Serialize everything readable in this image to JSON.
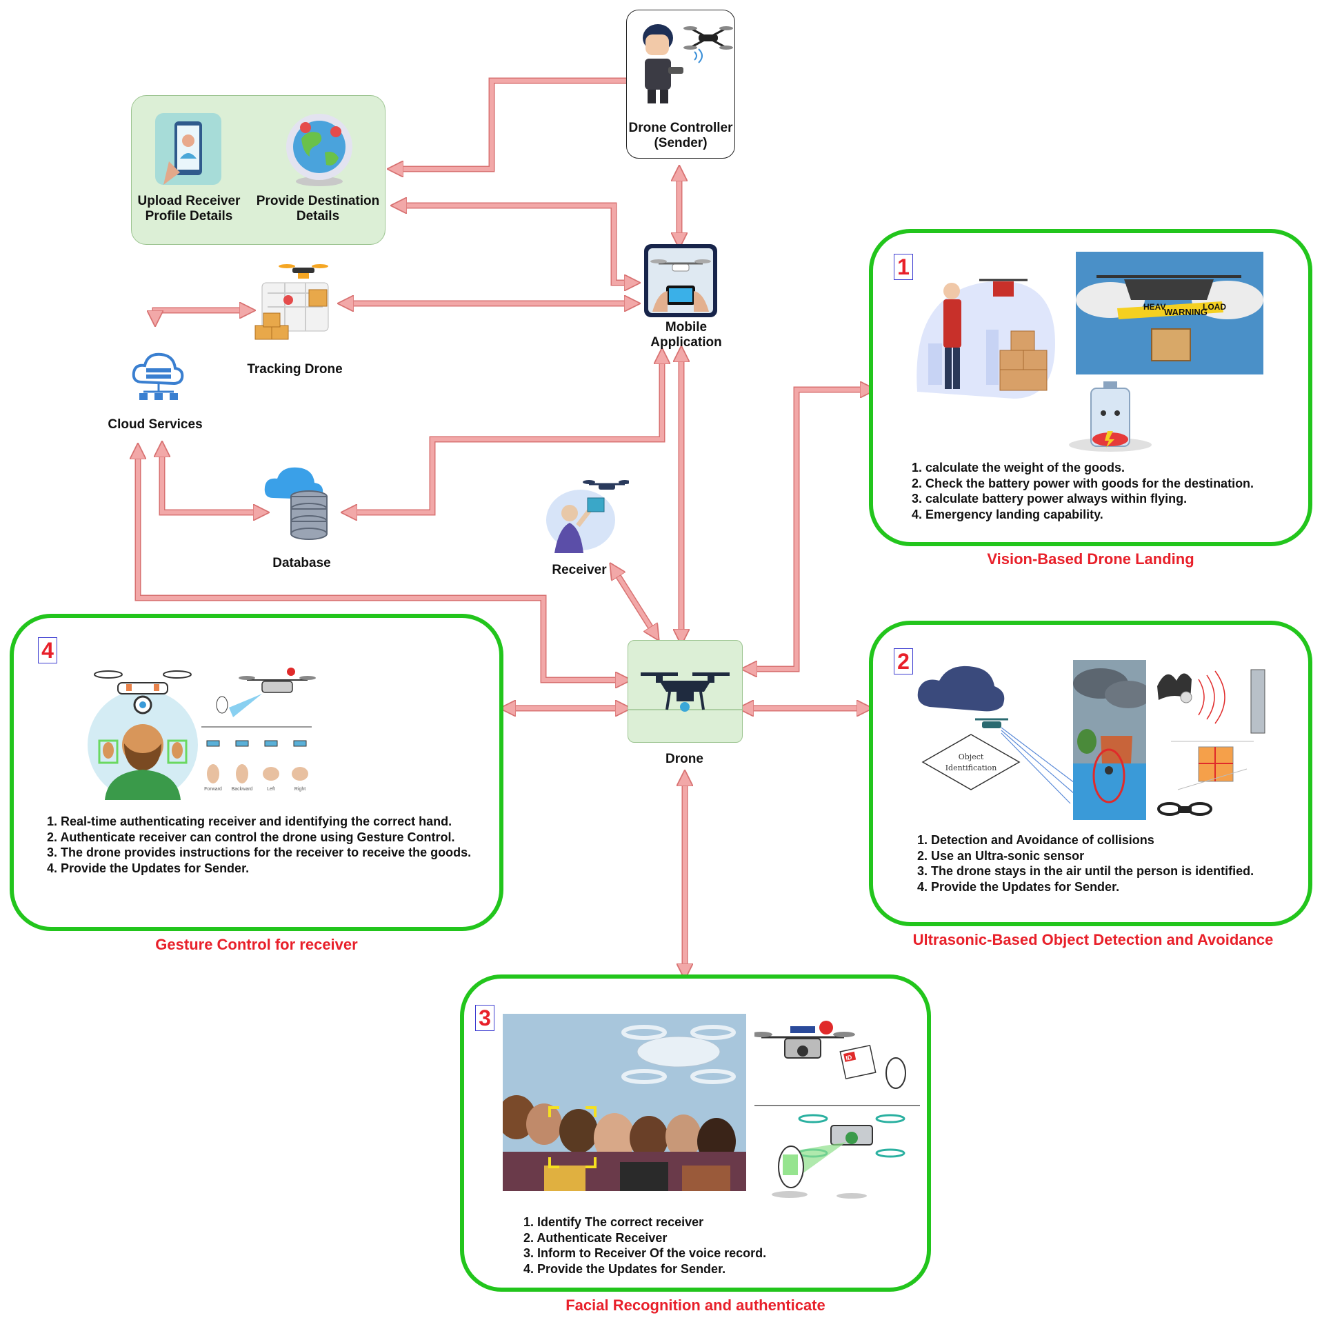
{
  "nodes": {
    "drone_controller": "Drone Controller\n(Sender)",
    "upload_receiver": "Upload Receiver\nProfile Details",
    "provide_destination": "Provide Destination\nDetails",
    "mobile_application": "Mobile\nApplication",
    "tracking_drone": "Tracking Drone",
    "cloud_services": "Cloud Services",
    "database": "Database",
    "receiver": "Receiver",
    "drone": "Drone"
  },
  "panels": {
    "vision": {
      "number": "1",
      "title": "Vision-Based Drone Landing",
      "items": [
        "1. calculate the weight of the goods.",
        "2. Check the battery power with goods for the destination.",
        "3. calculate battery power always within flying.",
        "4. Emergency landing capability."
      ],
      "sign_text": [
        "HEAV",
        "WARNING",
        "LOAD"
      ]
    },
    "ultrasonic": {
      "number": "2",
      "title": "Ultrasonic-Based Object Detection and Avoidance",
      "items": [
        "1. Detection and Avoidance of collisions",
        "2. Use an Ultra-sonic sensor",
        "3. The drone stays in the air until the person is identified.",
        "4. Provide the Updates for Sender."
      ],
      "diamond_text": "Object\nIdentification"
    },
    "facial": {
      "number": "3",
      "title": "Facial Recognition and authenticate",
      "items": [
        "1. Identify The correct receiver",
        "2. Authenticate Receiver",
        "3. Inform to Receiver Of the voice record.",
        "4. Provide the Updates for Sender."
      ],
      "id_card": "ID"
    },
    "gesture": {
      "number": "4",
      "title": "Gesture Control for receiver",
      "items": [
        "1. Real-time authenticating receiver and identifying the correct hand.",
        "2. Authenticate receiver can control the drone using Gesture Control.",
        "3. The drone provides instructions for the receiver to receive the goods.",
        "4. Provide the Updates for Sender."
      ],
      "gesture_labels": [
        "Forward",
        "Backward",
        "Left",
        "Right"
      ]
    }
  },
  "colors": {
    "connector": "#f2a8a8",
    "connector_stroke": "#d87272",
    "panel_border": "#22c51c",
    "panel_title": "#e8202a",
    "number_border": "#3a3ad0",
    "green_group": "#dcefd6"
  }
}
